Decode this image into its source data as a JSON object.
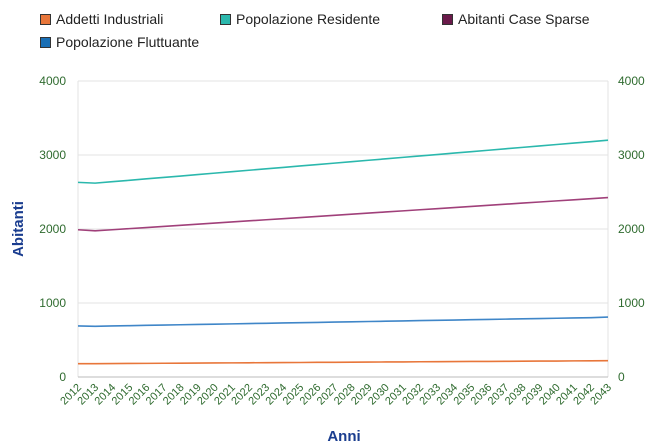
{
  "chart_data": {
    "type": "line",
    "xlabel": "Anni",
    "ylabel": "Abitanti",
    "ylim": [
      0,
      4000
    ],
    "y_ticks": [
      "0",
      "1000",
      "2000",
      "3000",
      "4000"
    ],
    "y_ticks_right": [
      "0",
      "1000",
      "2000",
      "3000",
      "4000"
    ],
    "grid": true,
    "legend_position": "top",
    "categories": [
      "2012",
      "2013",
      "2014",
      "2015",
      "2016",
      "2017",
      "2018",
      "2019",
      "2020",
      "2021",
      "2022",
      "2023",
      "2024",
      "2025",
      "2026",
      "2027",
      "2028",
      "2029",
      "2030",
      "2031",
      "2032",
      "2033",
      "2034",
      "2035",
      "2036",
      "2037",
      "2038",
      "2039",
      "2040",
      "2041",
      "2042",
      "2043"
    ],
    "series": [
      {
        "name": "Addetti Industriali",
        "color": "#e8763a",
        "values": [
          180,
          180,
          182,
          183,
          184,
          186,
          187,
          188,
          190,
          191,
          192,
          194,
          195,
          196,
          198,
          199,
          200,
          202,
          203,
          204,
          206,
          207,
          208,
          210,
          211,
          212,
          214,
          215,
          216,
          218,
          219,
          220
        ]
      },
      {
        "name": "Popolazione Residente",
        "color": "#2bb8ad",
        "values": [
          2630,
          2620,
          2639,
          2658,
          2678,
          2697,
          2716,
          2736,
          2755,
          2774,
          2794,
          2813,
          2832,
          2852,
          2871,
          2890,
          2910,
          2929,
          2948,
          2968,
          2987,
          3006,
          3026,
          3045,
          3064,
          3084,
          3103,
          3122,
          3142,
          3161,
          3180,
          3200
        ]
      },
      {
        "name": "Abitanti Case Sparse",
        "color": "#a0407a",
        "values": [
          1990,
          1975,
          1990,
          2005,
          2020,
          2035,
          2050,
          2065,
          2080,
          2095,
          2110,
          2125,
          2140,
          2155,
          2170,
          2185,
          2200,
          2215,
          2230,
          2245,
          2260,
          2275,
          2290,
          2305,
          2320,
          2335,
          2350,
          2365,
          2380,
          2395,
          2410,
          2425
        ]
      },
      {
        "name": "Popolazione Fluttuante",
        "color": "#3f86c8",
        "values": [
          690,
          685,
          690,
          694,
          698,
          702,
          706,
          710,
          714,
          718,
          722,
          726,
          730,
          734,
          738,
          742,
          746,
          750,
          754,
          758,
          762,
          766,
          770,
          774,
          778,
          782,
          786,
          790,
          794,
          798,
          802,
          810
        ]
      }
    ]
  }
}
